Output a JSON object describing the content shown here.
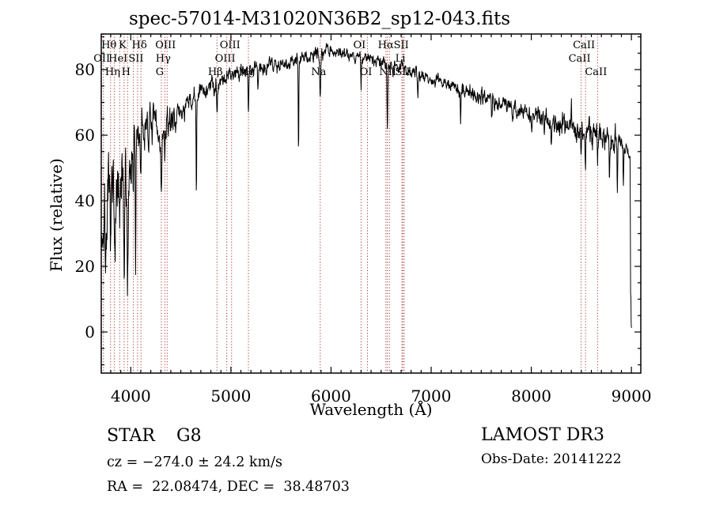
{
  "annotations": {
    "class": "STAR",
    "subclass": "G8",
    "cz_line": "cz = −274.0 ± 24.2 km/s",
    "radec_line": "RA =  22.08474, DEC =  38.48703",
    "survey": "LAMOST DR3",
    "obs_date_line": "Obs-Date: 20141222"
  },
  "colors": {
    "trace": "#000000",
    "marker": "#a23830",
    "label_text": "#1c1010",
    "axis": "#000000"
  },
  "chart_data": {
    "type": "line",
    "title": "spec-57014-M31020N36B2_sp12-043.fits",
    "xlabel": "Wavelength (Å)",
    "ylabel": "Flux (relative)",
    "xlim": [
      3705,
      9094
    ],
    "ylim": [
      -12.5,
      90.9
    ],
    "xticks": [
      4000,
      5000,
      6000,
      7000,
      8000,
      9000
    ],
    "x_minor_step": 100,
    "yticks": [
      0,
      20,
      40,
      60,
      80
    ],
    "y_minor_step": 5,
    "legend": "none",
    "grid": false,
    "spectral_lines": [
      {
        "wl": 3727,
        "label": "OII",
        "row": 2
      },
      {
        "wl": 3798,
        "label": "Hθ",
        "row": 1
      },
      {
        "wl": 3835,
        "label": "Hη",
        "row": 3
      },
      {
        "wl": 3889,
        "label": "HeI",
        "row": 2
      },
      {
        "wl": 3934,
        "label": "K",
        "row": 1
      },
      {
        "wl": 3968,
        "label": "H",
        "row": 3
      },
      {
        "wl": 4026,
        "label": "",
        "row": 0
      },
      {
        "wl": 4068,
        "label": "SII",
        "row": 2
      },
      {
        "wl": 4102,
        "label": "Hδ",
        "row": 1
      },
      {
        "wl": 4305,
        "label": "G",
        "row": 3
      },
      {
        "wl": 4340,
        "label": "Hγ",
        "row": 2
      },
      {
        "wl": 4363,
        "label": "OIII",
        "row": 1
      },
      {
        "wl": 4861,
        "label": "Hβ",
        "row": 3
      },
      {
        "wl": 4959,
        "label": "OIII",
        "row": 2
      },
      {
        "wl": 5007,
        "label": "OIII",
        "row": 1
      },
      {
        "wl": 5175,
        "label": "Mg",
        "row": 3
      },
      {
        "wl": 5892,
        "label": "Na",
        "row": 3
      },
      {
        "wl": 6300,
        "label": "OI",
        "row": 1
      },
      {
        "wl": 6364,
        "label": "OI",
        "row": 3
      },
      {
        "wl": 6548,
        "label": "",
        "row": 0
      },
      {
        "wl": 6563,
        "label": "Hα",
        "row": 1
      },
      {
        "wl": 6583,
        "label": "NII",
        "row": 3
      },
      {
        "wl": 6708,
        "label": "Li",
        "row": 2
      },
      {
        "wl": 6717,
        "label": "SII",
        "row": 1
      },
      {
        "wl": 6731,
        "label": "SII",
        "row": 3
      },
      {
        "wl": 8498,
        "label": "CaII",
        "row": 2
      },
      {
        "wl": 8542,
        "label": "CaII",
        "row": 1
      },
      {
        "wl": 8662,
        "label": "CaII",
        "row": 3
      }
    ],
    "spectrum": {
      "continuum": [
        [
          3705,
          30
        ],
        [
          3740,
          34
        ],
        [
          3780,
          37
        ],
        [
          3820,
          39
        ],
        [
          3860,
          41
        ],
        [
          3900,
          43
        ],
        [
          3940,
          42
        ],
        [
          3975,
          45
        ],
        [
          4000,
          52
        ],
        [
          4040,
          58
        ],
        [
          4080,
          60
        ],
        [
          4120,
          61
        ],
        [
          4180,
          62
        ],
        [
          4240,
          63
        ],
        [
          4305,
          58
        ],
        [
          4360,
          63
        ],
        [
          4420,
          65
        ],
        [
          4500,
          67
        ],
        [
          4600,
          70
        ],
        [
          4700,
          73
        ],
        [
          4800,
          75
        ],
        [
          4900,
          77
        ],
        [
          5000,
          78.5
        ],
        [
          5100,
          80
        ],
        [
          5200,
          80
        ],
        [
          5300,
          81
        ],
        [
          5400,
          81.5
        ],
        [
          5500,
          82
        ],
        [
          5600,
          82.5
        ],
        [
          5700,
          83
        ],
        [
          5800,
          84
        ],
        [
          5900,
          84.5
        ],
        [
          5980,
          86
        ],
        [
          6050,
          85.5
        ],
        [
          6150,
          85
        ],
        [
          6250,
          84
        ],
        [
          6350,
          83.5
        ],
        [
          6450,
          82.5
        ],
        [
          6550,
          82
        ],
        [
          6650,
          81
        ],
        [
          6750,
          80
        ],
        [
          6850,
          79
        ],
        [
          6950,
          78
        ],
        [
          7050,
          76.5
        ],
        [
          7150,
          75.5
        ],
        [
          7250,
          74.5
        ],
        [
          7350,
          73.5
        ],
        [
          7450,
          72.5
        ],
        [
          7550,
          71.5
        ],
        [
          7650,
          70.5
        ],
        [
          7750,
          69
        ],
        [
          7850,
          68
        ],
        [
          7950,
          67
        ],
        [
          8050,
          66
        ],
        [
          8150,
          65
        ],
        [
          8250,
          64
        ],
        [
          8350,
          63
        ],
        [
          8450,
          62
        ],
        [
          8550,
          61.5
        ],
        [
          8650,
          60.5
        ],
        [
          8750,
          59
        ],
        [
          8850,
          58
        ],
        [
          8930,
          56
        ],
        [
          8970,
          55
        ],
        [
          8988,
          53
        ],
        [
          8991,
          10
        ],
        [
          8994,
          14
        ],
        [
          8997,
          2
        ],
        [
          9000,
          1
        ],
        [
          9003,
          1
        ]
      ],
      "noise_sigma": [
        [
          3705,
          8
        ],
        [
          3990,
          8
        ],
        [
          4010,
          5
        ],
        [
          4350,
          3
        ],
        [
          4500,
          2.2
        ],
        [
          5200,
          1.6
        ],
        [
          6000,
          1.3
        ],
        [
          7000,
          1.3
        ],
        [
          7800,
          1.8
        ],
        [
          8300,
          2.2
        ],
        [
          8700,
          3
        ],
        [
          8950,
          2
        ],
        [
          8990,
          0.6
        ],
        [
          9003,
          0.4
        ]
      ],
      "absorption_dips": [
        [
          3750,
          12,
          4
        ],
        [
          3798,
          10,
          4
        ],
        [
          3835,
          12,
          4
        ],
        [
          3889,
          18,
          4
        ],
        [
          3934,
          26,
          5
        ],
        [
          3968,
          25,
          5
        ],
        [
          4026,
          12,
          3
        ],
        [
          4048,
          42,
          3
        ],
        [
          4101,
          16,
          4
        ],
        [
          4305,
          14,
          5
        ],
        [
          4340,
          8,
          4
        ],
        [
          4655,
          32,
          3
        ],
        [
          4861,
          9,
          4
        ],
        [
          5175,
          14,
          4
        ],
        [
          5270,
          6,
          3
        ],
        [
          5675,
          29,
          3
        ],
        [
          5892,
          11,
          5
        ],
        [
          6300,
          9,
          3
        ],
        [
          6563,
          20,
          4
        ],
        [
          6868,
          6,
          5
        ],
        [
          7294,
          11,
          3
        ],
        [
          7605,
          7,
          4
        ],
        [
          8005,
          7,
          3
        ],
        [
          8130,
          7,
          3
        ],
        [
          8200,
          8,
          3
        ],
        [
          8498,
          9,
          3
        ],
        [
          8542,
          13,
          3
        ],
        [
          8662,
          11,
          3
        ],
        [
          8780,
          13,
          3
        ],
        [
          8860,
          14,
          3
        ],
        [
          8920,
          10,
          3
        ]
      ],
      "emission_spikes": [
        [
          4160,
          7,
          4
        ],
        [
          5955,
          3,
          10
        ],
        [
          7680,
          4,
          3
        ],
        [
          8400,
          9,
          3
        ]
      ]
    }
  }
}
